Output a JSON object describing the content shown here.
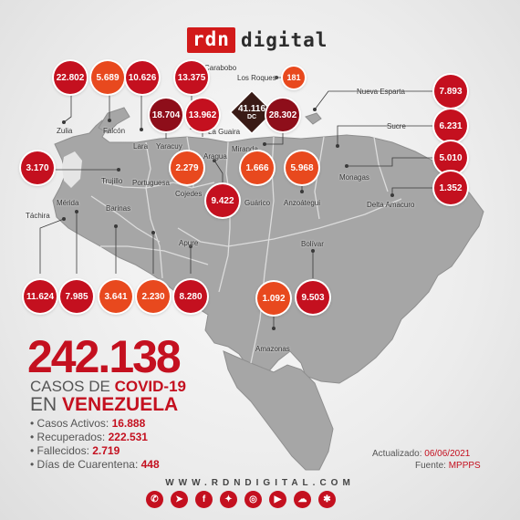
{
  "brand": {
    "rdn": "rdn",
    "digital": "digital"
  },
  "total": "242.138",
  "casos_prefix": "CASOS DE ",
  "casos_covid": "COVID-19",
  "en_prefix": "EN ",
  "en_country": "VENEZUELA",
  "stats": [
    {
      "label": "Casos Activos: ",
      "value": "16.888"
    },
    {
      "label": "Recuperados: ",
      "value": "222.531"
    },
    {
      "label": "Fallecidos: ",
      "value": "2.719"
    },
    {
      "label": "Días de Cuarentena: ",
      "value": "448"
    }
  ],
  "updated_label": "Actualizado: ",
  "updated_value": "06/06/2021",
  "source_label": "Fuente: ",
  "source_value": "MPPPS",
  "website": "WWW.RDNDIGITAL.COM",
  "dc": {
    "value": "41.116",
    "label": "DC"
  },
  "bubbles": [
    {
      "value": "22.802",
      "style": "red"
    },
    {
      "value": "5.689",
      "style": "orange"
    },
    {
      "value": "10.626",
      "style": "red"
    },
    {
      "value": "13.375",
      "style": "red"
    },
    {
      "value": "181",
      "style": "orange"
    },
    {
      "value": "18.704",
      "style": "red"
    },
    {
      "value": "13.962",
      "style": "red"
    },
    {
      "value": "28.302",
      "style": "red"
    },
    {
      "value": "7.893",
      "style": "red"
    },
    {
      "value": "6.231",
      "style": "red"
    },
    {
      "value": "5.010",
      "style": "red"
    },
    {
      "value": "1.352",
      "style": "red"
    },
    {
      "value": "3.170",
      "style": "red"
    },
    {
      "value": "2.279",
      "style": "orange"
    },
    {
      "value": "1.666",
      "style": "orange"
    },
    {
      "value": "5.968",
      "style": "orange"
    },
    {
      "value": "9.422",
      "style": "red"
    },
    {
      "value": "11.624",
      "style": "red"
    },
    {
      "value": "7.985",
      "style": "red"
    },
    {
      "value": "3.641",
      "style": "orange"
    },
    {
      "value": "2.230",
      "style": "orange"
    },
    {
      "value": "8.280",
      "style": "red"
    },
    {
      "value": "1.092",
      "style": "orange"
    },
    {
      "value": "9.503",
      "style": "red"
    }
  ],
  "states": [
    "Carabobo",
    "Los Roques",
    "Nueva Esparta",
    "Zulia",
    "Falcón",
    "Lara",
    "Yaracuy",
    "La Guaira",
    "Miranda",
    "Sucre",
    "Aragua",
    "Monagas",
    "Trujillo",
    "Portuguesa",
    "Cojedes",
    "Guárico",
    "Anzoátegui",
    "Delta Amacuro",
    "Mérida",
    "Barinas",
    "Táchira",
    "Apure",
    "Bolívar",
    "Amazonas"
  ],
  "social_icons": [
    "whatsapp-icon",
    "telegram-icon",
    "facebook-icon",
    "twitter-icon",
    "instagram-icon",
    "youtube-icon",
    "soundcloud-icon",
    "spreaker-icon"
  ],
  "colors": {
    "red": "#c4101f",
    "dark_red": "#8e0e1a",
    "orange": "#e8491e",
    "map": "#a9a9a9"
  }
}
